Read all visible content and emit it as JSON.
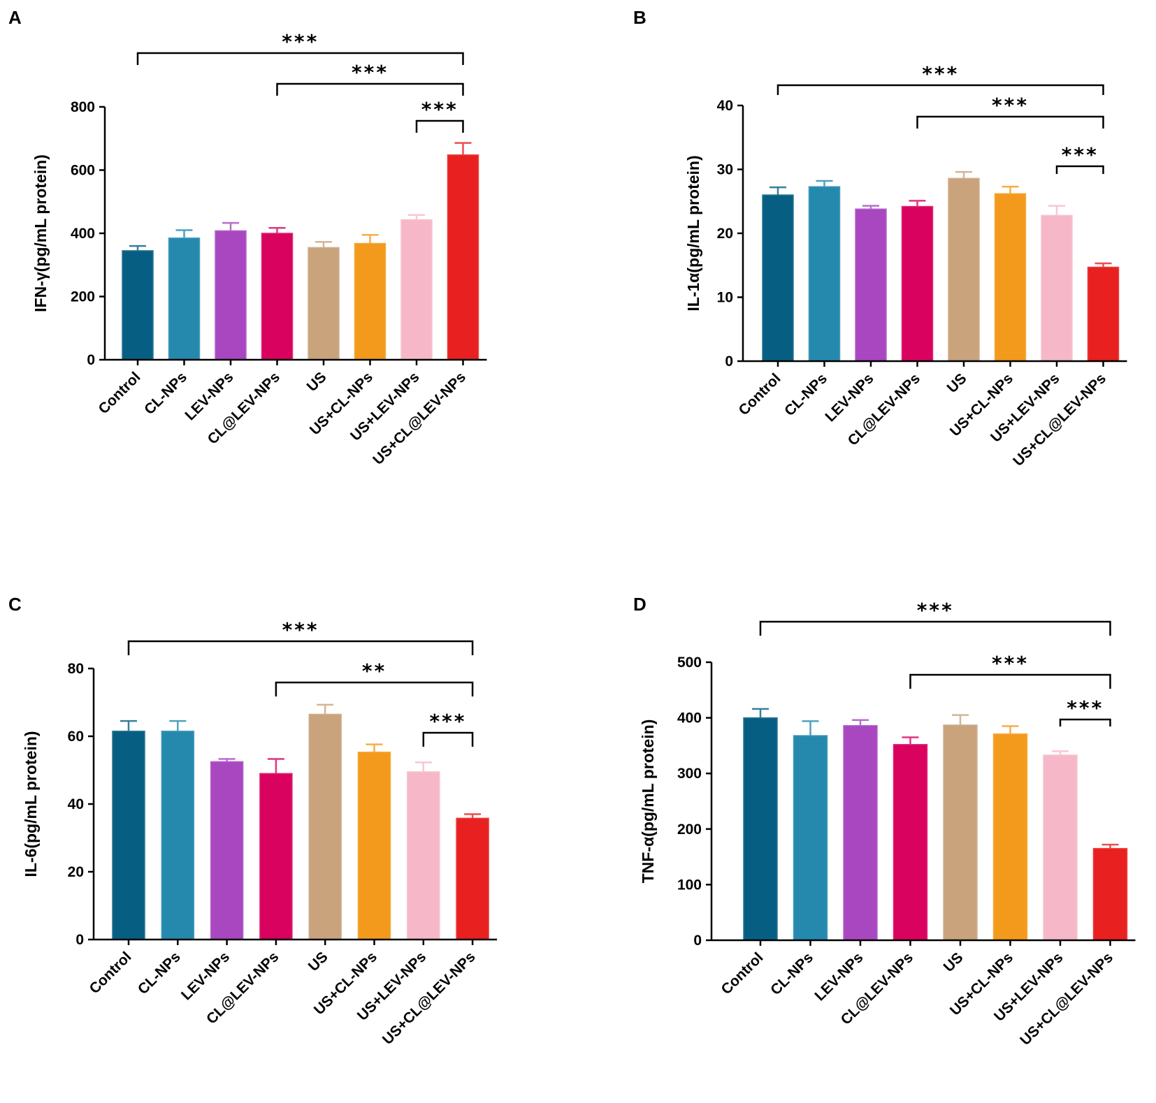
{
  "figure": {
    "panels": [
      "A",
      "B",
      "C",
      "D"
    ]
  },
  "chart_data": [
    {
      "panel": "A",
      "type": "bar",
      "ylabel": "IFN-γ(pg/mL protein)",
      "ylim": [
        0,
        800
      ],
      "yticks": [
        0,
        200,
        400,
        600,
        800
      ],
      "categories": [
        "Control",
        "CL-NPs",
        "LEV-NPs",
        "CL@LEV-NPs",
        "US",
        "US+CL-NPs",
        "US+LEV-NPs",
        "US+CL@LEV-NPs"
      ],
      "values": [
        345,
        385,
        408,
        400,
        355,
        368,
        443,
        648
      ],
      "errors": [
        15,
        25,
        25,
        17,
        18,
        27,
        15,
        38
      ],
      "colors": [
        "#065f82",
        "#2589ae",
        "#a847c0",
        "#d9025e",
        "#c9a37c",
        "#f39a1c",
        "#f6b8c8",
        "#e8201f"
      ],
      "significance": [
        {
          "from": 0,
          "to": 7,
          "label": "***"
        },
        {
          "from": 3,
          "to": 7,
          "label": "***"
        },
        {
          "from": 6,
          "to": 7,
          "label": "***"
        }
      ]
    },
    {
      "panel": "B",
      "type": "bar",
      "ylabel": "IL-1α(pg/mL protein)",
      "ylim": [
        0,
        40
      ],
      "yticks": [
        0,
        10,
        20,
        30,
        40
      ],
      "categories": [
        "Control",
        "CL-NPs",
        "LEV-NPs",
        "CL@LEV-NPs",
        "US",
        "US+CL-NPs",
        "US+LEV-NPs",
        "US+CL@LEV-NPs"
      ],
      "values": [
        26,
        27.3,
        23.8,
        24.2,
        28.6,
        26.2,
        22.8,
        14.7
      ],
      "errors": [
        1.2,
        0.9,
        0.5,
        0.9,
        1.0,
        1.1,
        1.5,
        0.6
      ],
      "colors": [
        "#065f82",
        "#2589ae",
        "#a847c0",
        "#d9025e",
        "#c9a37c",
        "#f39a1c",
        "#f6b8c8",
        "#e8201f"
      ],
      "significance": [
        {
          "from": 0,
          "to": 7,
          "label": "***"
        },
        {
          "from": 3,
          "to": 7,
          "label": "***"
        },
        {
          "from": 6,
          "to": 7,
          "label": "***"
        }
      ]
    },
    {
      "panel": "C",
      "type": "bar",
      "ylabel": "IL-6(pg/mL protein)",
      "ylim": [
        0,
        80
      ],
      "yticks": [
        0,
        20,
        40,
        60,
        80
      ],
      "categories": [
        "Control",
        "CL-NPs",
        "LEV-NPs",
        "CL@LEV-NPs",
        "US",
        "US+CL-NPs",
        "US+LEV-NPs",
        "US+CL@LEV-NPs"
      ],
      "values": [
        61.5,
        61.5,
        52.5,
        49,
        66.5,
        55.3,
        49.5,
        35.8
      ],
      "errors": [
        3,
        3,
        0.8,
        4.3,
        2.8,
        2.3,
        2.8,
        1.2
      ],
      "colors": [
        "#065f82",
        "#2589ae",
        "#a847c0",
        "#d9025e",
        "#c9a37c",
        "#f39a1c",
        "#f6b8c8",
        "#e8201f"
      ],
      "significance": [
        {
          "from": 0,
          "to": 7,
          "label": "***"
        },
        {
          "from": 3,
          "to": 7,
          "label": "**"
        },
        {
          "from": 6,
          "to": 7,
          "label": "***"
        }
      ]
    },
    {
      "panel": "D",
      "type": "bar",
      "ylabel": "TNF-α(pg/mL protein)",
      "ylim": [
        0,
        500
      ],
      "yticks": [
        0,
        100,
        200,
        300,
        400,
        500
      ],
      "categories": [
        "Control",
        "CL-NPs",
        "LEV-NPs",
        "CL@LEV-NPs",
        "US",
        "US+CL-NPs",
        "US+LEV-NPs",
        "US+CL@LEV-NPs"
      ],
      "values": [
        400,
        368,
        386,
        352,
        387,
        371,
        333,
        165
      ],
      "errors": [
        16,
        26,
        10,
        13,
        18,
        14,
        7,
        7
      ],
      "colors": [
        "#065f82",
        "#2589ae",
        "#a847c0",
        "#d9025e",
        "#c9a37c",
        "#f39a1c",
        "#f6b8c8",
        "#e8201f"
      ],
      "significance": [
        {
          "from": 0,
          "to": 7,
          "label": "***"
        },
        {
          "from": 3,
          "to": 7,
          "label": "***"
        },
        {
          "from": 6,
          "to": 7,
          "label": "***"
        }
      ]
    }
  ]
}
